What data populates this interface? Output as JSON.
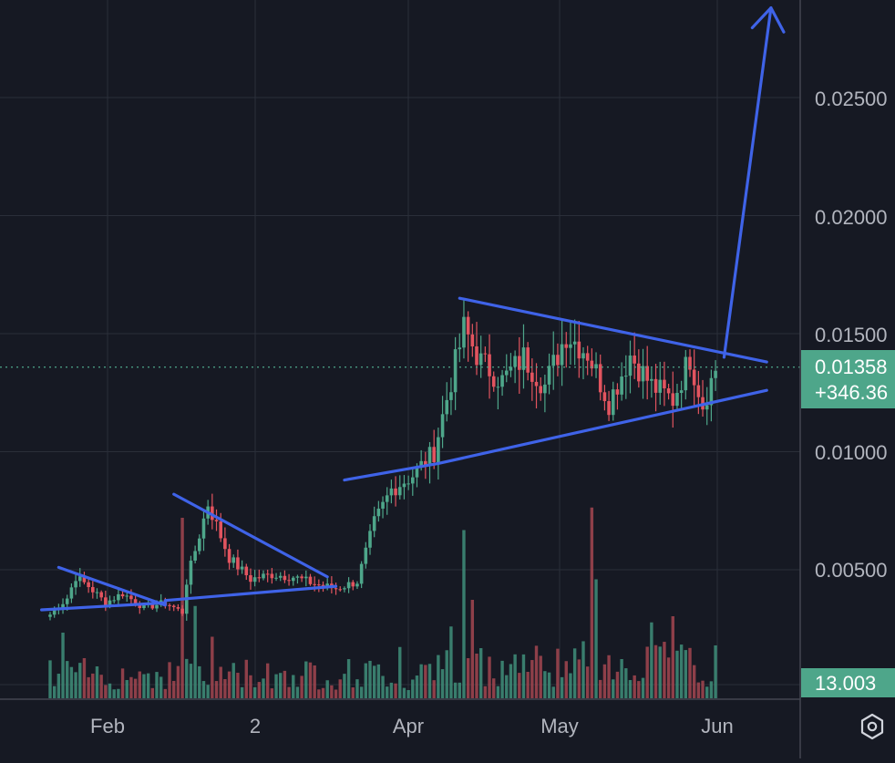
{
  "colors": {
    "background": "#161923",
    "grid": "#2a2e39",
    "axis_text": "#b2b5be",
    "up": "#4ea68a",
    "down": "#e2545f",
    "volume_up": "#3f8f7a",
    "volume_down": "#a34650",
    "trendline": "#3f63e8",
    "badge": "#4ea68a"
  },
  "price_axis": {
    "labels": [
      "0.02500",
      "0.02000",
      "0.01500",
      "0.01000",
      "0.00500"
    ],
    "current_price": "0.01358",
    "change": "+346.36",
    "volume_badge": "13.003"
  },
  "time_axis": {
    "labels": [
      "Feb",
      "2",
      "Apr",
      "May",
      "Jun"
    ]
  },
  "settings": {
    "icon": "hexagon-gear-icon"
  },
  "chart_data": {
    "type": "candlestick",
    "title": "",
    "xlabel": "",
    "ylabel": "",
    "ylim": [
      0,
      0.0294
    ],
    "grid": true,
    "x_ticks": [
      "Feb",
      "2",
      "Apr",
      "May",
      "Jun"
    ],
    "y_ticks": [
      0.025,
      0.02,
      0.015,
      0.01,
      0.005
    ],
    "last_price": 0.01358,
    "change_pct": 346.36,
    "volume_last": 13.003,
    "anchors": [
      {
        "i": 0,
        "p": 0.0031
      },
      {
        "i": 4,
        "p": 0.0038
      },
      {
        "i": 6,
        "p": 0.0047
      },
      {
        "i": 9,
        "p": 0.0043
      },
      {
        "i": 13,
        "p": 0.0036
      },
      {
        "i": 17,
        "p": 0.004
      },
      {
        "i": 22,
        "p": 0.0034
      },
      {
        "i": 27,
        "p": 0.0036
      },
      {
        "i": 31,
        "p": 0.0032
      },
      {
        "i": 32,
        "p": 0.0045
      },
      {
        "i": 37,
        "p": 0.0078
      },
      {
        "i": 42,
        "p": 0.0055
      },
      {
        "i": 47,
        "p": 0.0046
      },
      {
        "i": 52,
        "p": 0.0048
      },
      {
        "i": 57,
        "p": 0.0047
      },
      {
        "i": 62,
        "p": 0.0044
      },
      {
        "i": 67,
        "p": 0.0042
      },
      {
        "i": 72,
        "p": 0.0045
      },
      {
        "i": 76,
        "p": 0.007
      },
      {
        "i": 80,
        "p": 0.0084
      },
      {
        "i": 85,
        "p": 0.009
      },
      {
        "i": 90,
        "p": 0.01
      },
      {
        "i": 94,
        "p": 0.013
      },
      {
        "i": 97,
        "p": 0.0152
      },
      {
        "i": 101,
        "p": 0.0138
      },
      {
        "i": 106,
        "p": 0.013
      },
      {
        "i": 111,
        "p": 0.014
      },
      {
        "i": 116,
        "p": 0.0128
      },
      {
        "i": 121,
        "p": 0.015
      },
      {
        "i": 126,
        "p": 0.0142
      },
      {
        "i": 131,
        "p": 0.0121
      },
      {
        "i": 136,
        "p": 0.0141
      },
      {
        "i": 141,
        "p": 0.0128
      },
      {
        "i": 146,
        "p": 0.0122
      },
      {
        "i": 150,
        "p": 0.014
      },
      {
        "i": 153,
        "p": 0.012
      },
      {
        "i": 156,
        "p": 0.0135
      }
    ],
    "volume_spikes": [
      {
        "i": 3,
        "v": 0.32
      },
      {
        "i": 31,
        "v": 0.88
      },
      {
        "i": 34,
        "v": 0.45
      },
      {
        "i": 38,
        "v": 0.3
      },
      {
        "i": 82,
        "v": 0.25
      },
      {
        "i": 94,
        "v": 0.35
      },
      {
        "i": 97,
        "v": 0.82
      },
      {
        "i": 99,
        "v": 0.48
      },
      {
        "i": 127,
        "v": 0.93
      },
      {
        "i": 128,
        "v": 0.58
      },
      {
        "i": 141,
        "v": 0.37
      },
      {
        "i": 146,
        "v": 0.4
      }
    ],
    "trendlines": [
      {
        "i1": -2,
        "p1": 0.0033,
        "i2": 27,
        "p2": 0.0036
      },
      {
        "i1": 2,
        "p1": 0.0051,
        "i2": 27,
        "p2": 0.0035
      },
      {
        "i1": 29,
        "p1": 0.0082,
        "i2": 65,
        "p2": 0.0047
      },
      {
        "i1": 27,
        "p1": 0.0037,
        "i2": 67,
        "p2": 0.0043
      },
      {
        "i1": 69,
        "p1": 0.0088,
        "i2": 91,
        "p2": 0.0095
      },
      {
        "i1": 91,
        "p1": 0.0095,
        "i2": 168,
        "p2": 0.0126
      },
      {
        "i1": 96,
        "p1": 0.0165,
        "i2": 168,
        "p2": 0.0138
      }
    ],
    "projection_arrow": {
      "i1": 158,
      "p1": 0.014,
      "i2": 169,
      "p2": 0.0288
    }
  }
}
